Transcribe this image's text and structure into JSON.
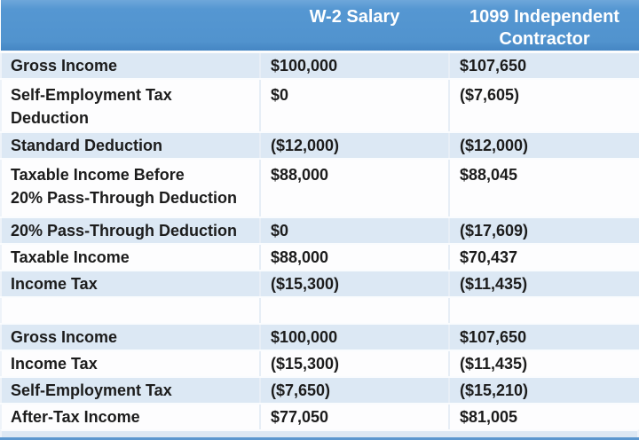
{
  "styles": {
    "header_blue": "#5193ce",
    "header_blue_top": "#6ea7da",
    "header_blue_bottom_edge": "#4586c4",
    "band_light_blue": "#dce8f4",
    "band_white": "#fdfdfe",
    "grid_line": "#e7eef6",
    "header_text": "#ffffff",
    "body_text": "#1c1c1c",
    "bottom_bar_blue": "#5b97cf"
  },
  "chart_data": {
    "type": "table",
    "title": "W-2 Salary vs 1099 Independent Contractor tax comparison",
    "columns": [
      "",
      "W-2 Salary",
      "1099 Independent\nContractor"
    ],
    "rows": [
      {
        "label": "Gross Income",
        "w2": "$100,000",
        "contractor": "$107,650"
      },
      {
        "label": "Self-Employment Tax\nDeduction",
        "w2": "$0",
        "contractor": "($7,605)"
      },
      {
        "label": "Standard Deduction",
        "w2": "($12,000)",
        "contractor": "($12,000)"
      },
      {
        "label": "Taxable Income Before\n20% Pass-Through Deduction",
        "w2": "$88,000",
        "contractor": "$88,045"
      },
      {
        "label": "20% Pass-Through Deduction",
        "w2": "$0",
        "contractor": "($17,609)"
      },
      {
        "label": "Taxable Income",
        "w2": "$88,000",
        "contractor": "$70,437"
      },
      {
        "label": "Income Tax",
        "w2": "($15,300)",
        "contractor": "($11,435)"
      },
      {
        "label": "",
        "w2": "",
        "contractor": ""
      },
      {
        "label": "Gross Income",
        "w2": "$100,000",
        "contractor": "$107,650"
      },
      {
        "label": "Income Tax",
        "w2": "($15,300)",
        "contractor": "($11,435)"
      },
      {
        "label": "Self-Employment Tax",
        "w2": "($7,650)",
        "contractor": "($15,210)"
      },
      {
        "label": "After-Tax Income",
        "w2": "$77,050",
        "contractor": "$81,005"
      }
    ]
  }
}
